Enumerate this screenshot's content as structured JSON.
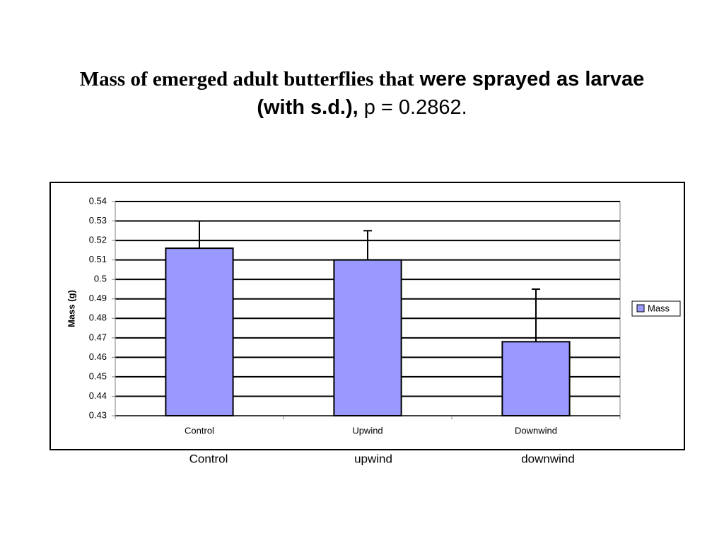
{
  "slide_title": [
    "Mass of emerged adult butterflies that",
    "were sprayed as larvae (with s.d.),",
    "p = 0.2862."
  ],
  "chart_data": {
    "type": "bar",
    "categories": [
      "Control",
      "Upwind",
      "Downwind"
    ],
    "series": [
      {
        "name": "Mass",
        "color": "#9999ff",
        "values": [
          0.516,
          0.51,
          0.468
        ],
        "errors": [
          0.014,
          0.015,
          0.027
        ]
      }
    ],
    "y_label": "Mass (g)",
    "ylim": [
      0.43,
      0.54
    ],
    "yticks": [
      0.43,
      0.44,
      0.45,
      0.46,
      0.47,
      0.48,
      0.49,
      0.5,
      0.51,
      0.52,
      0.53,
      0.54
    ],
    "grid": true,
    "legend": "right"
  },
  "slide_labels": [
    "Control",
    "upwind",
    "downwind"
  ]
}
